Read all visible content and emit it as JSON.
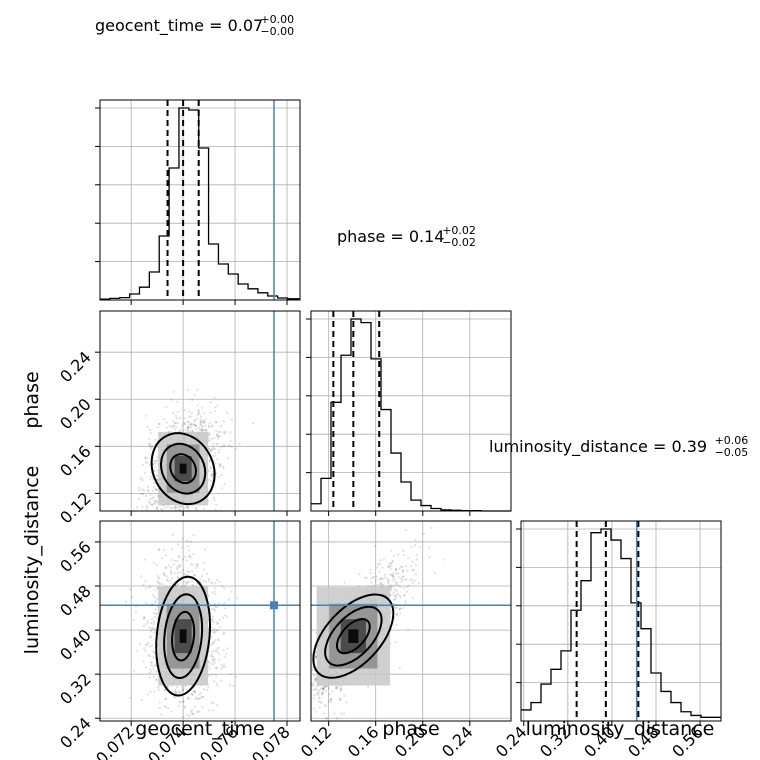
{
  "chart_data": {
    "type": "corner",
    "parameters": [
      "geocent_time",
      "phase",
      "luminosity_distance"
    ],
    "truths": {
      "geocent_time": 0.0775,
      "phase": null,
      "luminosity_distance": 0.445
    },
    "truth_color": "#4682b4",
    "titles": [
      {
        "param": "geocent_time",
        "label": "geocent_time = 0.07",
        "plus": "+0.00",
        "minus": "−0.00"
      },
      {
        "param": "phase",
        "label": "phase = 0.14",
        "plus": "+0.02",
        "minus": "−0.02"
      },
      {
        "param": "luminosity_distance",
        "label": "luminosity_distance = 0.39",
        "plus": "+0.06",
        "minus": "−0.05"
      }
    ],
    "axes": {
      "geocent_time": {
        "range": [
          0.0708,
          0.0785
        ],
        "ticks": [
          0.072,
          0.074,
          0.076,
          0.078
        ],
        "tick_labels": [
          "0.072",
          "0.074",
          "0.076",
          "0.078"
        ]
      },
      "phase": {
        "range": [
          0.105,
          0.275
        ],
        "ticks": [
          0.12,
          0.16,
          0.2,
          0.24
        ],
        "tick_labels": [
          "0.12",
          "0.16",
          "0.20",
          "0.24"
        ]
      },
      "luminosity_distance": {
        "range": [
          0.235,
          0.598
        ],
        "ticks": [
          0.24,
          0.32,
          0.4,
          0.48,
          0.56
        ],
        "tick_labels": [
          "0.24",
          "0.32",
          "0.40",
          "0.48",
          "0.56"
        ]
      }
    },
    "quantiles": {
      "geocent_time": [
        0.0734,
        0.074,
        0.0746
      ],
      "phase": [
        0.124,
        0.141,
        0.163
      ],
      "luminosity_distance": [
        0.336,
        0.389,
        0.448
      ]
    },
    "histograms": {
      "geocent_time": {
        "edges": [
          0.0708,
          0.07118,
          0.07156,
          0.07194,
          0.07232,
          0.0727,
          0.07308,
          0.07346,
          0.07384,
          0.07422,
          0.0746,
          0.07498,
          0.07536,
          0.07574,
          0.07612,
          0.0765,
          0.07688,
          0.07726,
          0.07764,
          0.07802,
          0.0785
        ],
        "counts": [
          0.2,
          0.4,
          0.6,
          1.5,
          3.2,
          7.0,
          16.0,
          33.0,
          48.0,
          47.5,
          38.0,
          14.0,
          9.0,
          6.5,
          4.0,
          2.8,
          1.8,
          1.0,
          0.5,
          0.3
        ]
      },
      "phase": {
        "edges": [
          0.105,
          0.1135,
          0.122,
          0.1305,
          0.139,
          0.1475,
          0.156,
          0.1645,
          0.173,
          0.1815,
          0.19,
          0.1985,
          0.207,
          0.2155,
          0.224,
          0.2325,
          0.241,
          0.2495,
          0.258,
          0.2665,
          0.275
        ],
        "counts": [
          2,
          9,
          30,
          43,
          53,
          52,
          42,
          28,
          16,
          8,
          3,
          1.5,
          0.7,
          0.3,
          0.2,
          0.1,
          0.1,
          0,
          0,
          0
        ]
      },
      "luminosity_distance": {
        "edges": [
          0.235,
          0.25315,
          0.2713,
          0.28945,
          0.3076,
          0.32575,
          0.3439,
          0.36205,
          0.3802,
          0.39835,
          0.4165,
          0.43465,
          0.4528,
          0.47095,
          0.4891,
          0.50725,
          0.5254,
          0.54355,
          0.5617,
          0.57985,
          0.598
        ],
        "counts": [
          3,
          5,
          10,
          14,
          19,
          30,
          38,
          51,
          52,
          49,
          44,
          32,
          25,
          13,
          8,
          5,
          2.5,
          1.5,
          1,
          1
        ]
      }
    }
  }
}
